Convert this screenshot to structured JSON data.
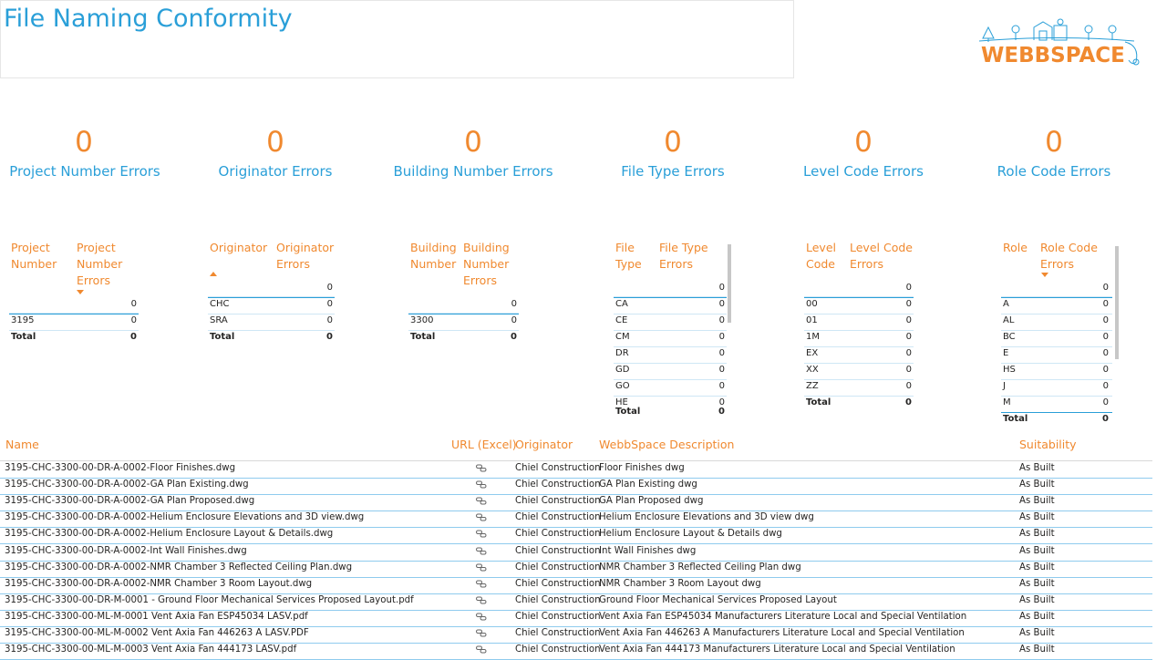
{
  "page": {
    "title": "File Naming Conformity",
    "logo_text": "WEBBSPACE"
  },
  "colors": {
    "accent_blue": "#2a9fd8",
    "accent_orange": "#f0892f",
    "row_line": "#cfe7f5"
  },
  "kpis": [
    {
      "value": "0",
      "label": "Project Number Errors"
    },
    {
      "value": "0",
      "label": "Originator Errors"
    },
    {
      "value": "0",
      "label": "Building Number Errors"
    },
    {
      "value": "0",
      "label": "File Type Errors"
    },
    {
      "value": "0",
      "label": "Level Code Errors"
    },
    {
      "value": "0",
      "label": "Role Code Errors"
    }
  ],
  "matrices": {
    "project": {
      "col1": "Project Number",
      "col2": "Project Number Errors",
      "rows": [
        {
          "key": "",
          "value": "0"
        },
        {
          "key": "3195",
          "value": "0"
        }
      ],
      "total_label": "Total",
      "total_value": "0"
    },
    "originator": {
      "col1": "Originator",
      "col2": "Originator Errors",
      "top_value": "0",
      "rows": [
        {
          "key": "CHC",
          "value": "0"
        },
        {
          "key": "SRA",
          "value": "0"
        }
      ],
      "total_label": "Total",
      "total_value": "0"
    },
    "building": {
      "col1": "Building Number",
      "col2": "Building Number Errors",
      "rows": [
        {
          "key": "",
          "value": "0"
        },
        {
          "key": "3300",
          "value": "0"
        }
      ],
      "total_label": "Total",
      "total_value": "0"
    },
    "filetype": {
      "col1": "File Type",
      "col2": "File Type Errors",
      "top_value": "0",
      "rows": [
        {
          "key": "CA",
          "value": "0"
        },
        {
          "key": "CE",
          "value": "0"
        },
        {
          "key": "CM",
          "value": "0"
        },
        {
          "key": "DR",
          "value": "0"
        },
        {
          "key": "GD",
          "value": "0"
        },
        {
          "key": "GO",
          "value": "0"
        },
        {
          "key": "HE",
          "value": "0"
        }
      ],
      "total_label": "Total",
      "total_value": "0"
    },
    "level": {
      "col1": "Level Code",
      "col2": "Level Code Errors",
      "top_value": "0",
      "rows": [
        {
          "key": "00",
          "value": "0"
        },
        {
          "key": "01",
          "value": "0"
        },
        {
          "key": "1M",
          "value": "0"
        },
        {
          "key": "EX",
          "value": "0"
        },
        {
          "key": "XX",
          "value": "0"
        },
        {
          "key": "ZZ",
          "value": "0"
        }
      ],
      "total_label": "Total",
      "total_value": "0"
    },
    "role": {
      "col1": "Role",
      "col2": "Role Code Errors",
      "top_value": "0",
      "rows": [
        {
          "key": "A",
          "value": "0"
        },
        {
          "key": "AL",
          "value": "0"
        },
        {
          "key": "BC",
          "value": "0"
        },
        {
          "key": "E",
          "value": "0"
        },
        {
          "key": "HS",
          "value": "0"
        },
        {
          "key": "J",
          "value": "0"
        },
        {
          "key": "M",
          "value": "0"
        }
      ],
      "total_label": "Total",
      "total_value": "0"
    }
  },
  "file_list": {
    "headers": {
      "name": "Name",
      "url": "URL (Excel)",
      "originator": "Originator",
      "description": "WebbSpace Description",
      "suitability": "Suitability"
    },
    "link_icon": "link-icon",
    "rows": [
      {
        "name": "3195-CHC-3300-00-DR-A-0002-Floor Finishes.dwg",
        "originator": "Chiel Construction",
        "description": "Floor Finishes dwg",
        "suitability": "As Built"
      },
      {
        "name": "3195-CHC-3300-00-DR-A-0002-GA Plan Existing.dwg",
        "originator": "Chiel Construction",
        "description": "GA Plan Existing dwg",
        "suitability": "As Built"
      },
      {
        "name": "3195-CHC-3300-00-DR-A-0002-GA Plan Proposed.dwg",
        "originator": "Chiel Construction",
        "description": "GA Plan Proposed dwg",
        "suitability": "As Built"
      },
      {
        "name": "3195-CHC-3300-00-DR-A-0002-Helium Enclosure Elevations and 3D view.dwg",
        "originator": "Chiel Construction",
        "description": "Helium Enclosure Elevations and 3D view dwg",
        "suitability": "As Built"
      },
      {
        "name": "3195-CHC-3300-00-DR-A-0002-Helium Enclosure Layout & Details.dwg",
        "originator": "Chiel Construction",
        "description": "Helium Enclosure Layout & Details dwg",
        "suitability": "As Built"
      },
      {
        "name": "3195-CHC-3300-00-DR-A-0002-Int Wall Finishes.dwg",
        "originator": "Chiel Construction",
        "description": "Int Wall Finishes dwg",
        "suitability": "As Built"
      },
      {
        "name": "3195-CHC-3300-00-DR-A-0002-NMR Chamber 3 Reflected Ceiling Plan.dwg",
        "originator": "Chiel Construction",
        "description": "NMR Chamber 3 Reflected Ceiling Plan dwg",
        "suitability": "As Built"
      },
      {
        "name": "3195-CHC-3300-00-DR-A-0002-NMR Chamber 3 Room Layout.dwg",
        "originator": "Chiel Construction",
        "description": "NMR Chamber 3 Room Layout dwg",
        "suitability": "As Built"
      },
      {
        "name": "3195-CHC-3300-00-DR-M-0001 - Ground Floor Mechanical Services Proposed Layout.pdf",
        "originator": "Chiel Construction",
        "description": "Ground Floor Mechanical Services Proposed Layout",
        "suitability": "As Built"
      },
      {
        "name": "3195-CHC-3300-00-ML-M-0001 Vent Axia Fan ESP45034 LASV.pdf",
        "originator": "Chiel Construction",
        "description": "Vent Axia Fan ESP45034 Manufacturers Literature Local and Special Ventilation",
        "suitability": "As Built"
      },
      {
        "name": "3195-CHC-3300-00-ML-M-0002 Vent Axia Fan 446263 A LASV.PDF",
        "originator": "Chiel Construction",
        "description": "Vent Axia Fan 446263 A Manufacturers Literature Local and Special Ventilation",
        "suitability": "As Built"
      },
      {
        "name": "3195-CHC-3300-00-ML-M-0003 Vent Axia Fan 444173 LASV.pdf",
        "originator": "Chiel Construction",
        "description": "Vent Axia Fan 444173 Manufacturers Literature Local and Special Ventilation",
        "suitability": "As Built"
      }
    ]
  }
}
